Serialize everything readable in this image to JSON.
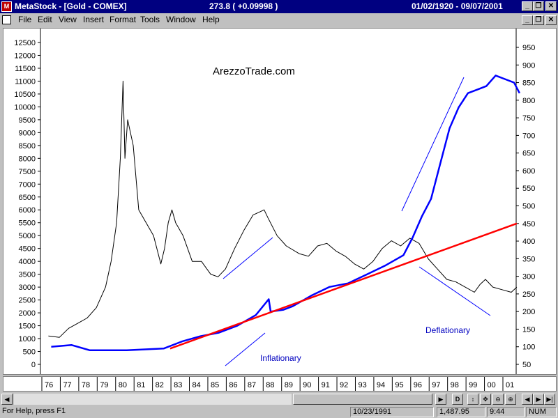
{
  "titlebar": {
    "app_name": "MetaStock - [Gold - COMEX]",
    "last_price": "273.8  ( +0.09998 )",
    "date_range": "01/02/1920 - 09/07/2001"
  },
  "menu": [
    "File",
    "Edit",
    "View",
    "Insert",
    "Format",
    "Tools",
    "Window",
    "Help"
  ],
  "chart": {
    "watermark": "ArezzoTrade.com",
    "annotations": {
      "inflationary": "Inflationary",
      "deflationary": "Deflationary"
    }
  },
  "statusbar": {
    "help": "For Help, press F1",
    "date": "10/23/1991",
    "value": "1,487.95",
    "time": "9:44",
    "mode": "NUM"
  },
  "colors": {
    "gold_series": "#0000ff",
    "dow_series": "#000000",
    "trendline": "#ff0000",
    "annotation_lines": "#0000ff"
  },
  "chart_data": {
    "type": "line",
    "left_axis_ticks": [
      "12500",
      "12000",
      "11500",
      "11000",
      "10500",
      "10000",
      "9500",
      "9000",
      "8500",
      "8000",
      "7500",
      "7000",
      "6500",
      "6000",
      "5500",
      "5000",
      "4500",
      "4000",
      "3500",
      "3000",
      "2500",
      "2000",
      "1500",
      "1000",
      "500",
      "0"
    ],
    "right_axis_ticks": [
      "950",
      "900",
      "850",
      "800",
      "750",
      "700",
      "650",
      "600",
      "550",
      "500",
      "450",
      "400",
      "350",
      "300",
      "250",
      "200",
      "150",
      "100",
      "50"
    ],
    "x_ticks": [
      "76",
      "77",
      "78",
      "79",
      "80",
      "81",
      "82",
      "83",
      "84",
      "85",
      "86",
      "87",
      "88",
      "89",
      "90",
      "91",
      "92",
      "93",
      "94",
      "95",
      "96",
      "97",
      "98",
      "99",
      "00",
      "01"
    ],
    "series": [
      {
        "axis": "left",
        "x": [
          75.9,
          76.5,
          77,
          77.5,
          78,
          78.5,
          79,
          79.3,
          79.6,
          79.8,
          79.95,
          80.05,
          80.2,
          80.5,
          80.8,
          81.2,
          81.6,
          82,
          82.2,
          82.4,
          82.6,
          82.8,
          83.2,
          83.7,
          84.2,
          84.7,
          85.1,
          85.5,
          86,
          86.5,
          87,
          87.3,
          87.6,
          87.8,
          88.3,
          88.8,
          89.5,
          90,
          90.5,
          91,
          91.5,
          92,
          92.5,
          93,
          93.5,
          94,
          94.5,
          95,
          95.5,
          96,
          96.5,
          97,
          97.5,
          98,
          98.5,
          99,
          99.3,
          99.6,
          100,
          100.5,
          101,
          101.3
        ],
        "values": [
          1100,
          1050,
          1400,
          1600,
          1800,
          2200,
          3000,
          4000,
          5500,
          8000,
          11000,
          8000,
          9500,
          8500,
          6000,
          5500,
          5000,
          3900,
          4500,
          5500,
          6000,
          5500,
          5000,
          4000,
          4000,
          3500,
          3400,
          3700,
          4500,
          5200,
          5800,
          5900,
          6000,
          5700,
          5000,
          4600,
          4300,
          4200,
          4600,
          4700,
          4400,
          4200,
          3900,
          3700,
          4000,
          4500,
          4800,
          4600,
          4900,
          4700,
          4100,
          3700,
          3300,
          3200,
          3000,
          2800,
          3100,
          3300,
          3000,
          2900,
          2800,
          3000
        ]
      },
      {
        "axis": "right",
        "x": [
          75.9,
          77,
          78,
          80,
          82,
          83,
          84,
          85,
          86,
          87,
          87.7,
          87.8,
          88.5,
          89,
          90,
          91,
          92,
          93,
          94,
          95,
          95.5,
          96,
          96.5,
          97,
          97.5,
          98,
          98.5,
          99,
          99.5,
          100,
          100.5,
          101,
          101.3
        ],
        "values": [
          100,
          105,
          90,
          90,
          95,
          115,
          130,
          140,
          160,
          190,
          235,
          200,
          205,
          215,
          245,
          270,
          280,
          305,
          330,
          360,
          410,
          470,
          520,
          620,
          720,
          780,
          820,
          830,
          840,
          870,
          860,
          850,
          820
        ]
      },
      {
        "axis": "right",
        "name": "",
        "x": [
          82.5,
          101.3
        ],
        "values": [
          95,
          450
        ]
      }
    ]
  }
}
